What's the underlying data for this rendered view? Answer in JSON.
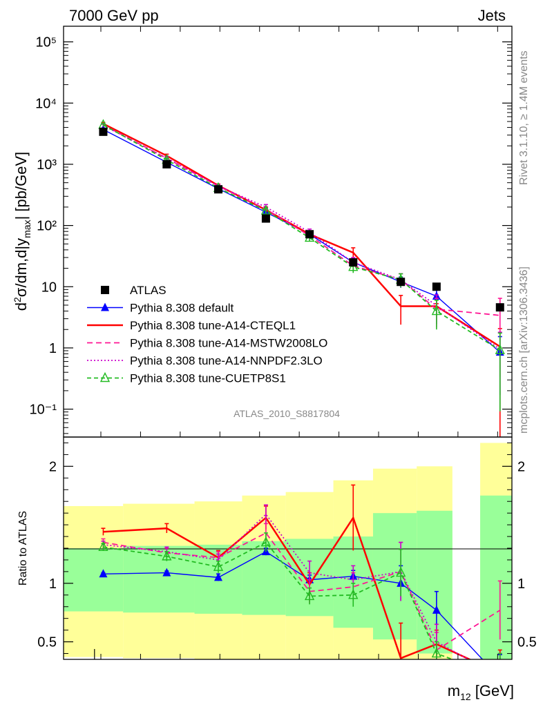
{
  "header": {
    "left": "7000 GeV pp",
    "right": "Jets"
  },
  "side_labels": {
    "rivet": "Rivet 3.1.10, ≥ 1.4M events",
    "mcplots": "mcplots.cern.ch [arXiv:1306.3436]"
  },
  "analysis_id": "ATLAS_2010_S8817804",
  "chart_data": [
    {
      "type": "line",
      "panel": "main",
      "ylabel": "d²σ/dm,d|y_max| [pb/GeV]",
      "yscale": "log",
      "ylim": [
        0.035,
        180000
      ],
      "xlim": [
        0,
        11.3
      ],
      "y_tick_labels": [
        "10⁻¹",
        "1",
        "10",
        "10²",
        "10³",
        "10⁴",
        "10⁵"
      ],
      "x": [
        1,
        2.6,
        3.9,
        5.1,
        6.2,
        7.3,
        8.5,
        9.4,
        11.0
      ],
      "legend": {
        "placement": "middle-left"
      },
      "series": [
        {
          "name": "ATLAS",
          "color": "#000000",
          "marker": "square",
          "values": [
            3400,
            1000,
            390,
            130,
            72,
            25,
            12,
            10,
            4.6
          ]
        },
        {
          "name": "Pythia 8.308 default",
          "color": "#0000ff",
          "marker": "filled-triangle",
          "values": [
            3700,
            1080,
            400,
            165,
            72,
            25,
            12,
            7,
            0.85
          ],
          "errors": [
            0.04,
            0.05,
            0.05,
            0.07,
            0.1,
            0.15,
            0.2,
            0.3,
            0.8
          ]
        },
        {
          "name": "Pythia 8.308 tune-A14-CTEQL1",
          "color": "#ff0000",
          "marker": "none",
          "values": [
            4600,
            1380,
            450,
            180,
            72,
            36,
            4.8,
            4.8,
            1.05
          ],
          "errors": [
            0.05,
            0.06,
            0.06,
            0.1,
            0.12,
            0.2,
            0.5,
            0.1,
            0.97
          ]
        },
        {
          "name": "Pythia 8.308 tune-A14-MSTW2008LO",
          "color": "#ff1493",
          "marker": "none",
          "values": [
            4400,
            1250,
            440,
            185,
            68,
            22,
            13,
            4.3,
            3.4
          ],
          "errors": [
            0.05,
            0.06,
            0.06,
            0.1,
            0.12,
            0.2,
            0.25,
            0.5,
            0.9
          ]
        },
        {
          "name": "Pythia 8.308 tune-A14-NNPDF2.3LO",
          "color": "#cc00cc",
          "marker": "none",
          "values": [
            4300,
            1260,
            440,
            200,
            78,
            25,
            13,
            4.9,
            0.95
          ],
          "errors": [
            0.05,
            0.06,
            0.06,
            0.1,
            0.12,
            0.2,
            0.25,
            0.5,
            0.9
          ]
        },
        {
          "name": "Pythia 8.308 tune-CUETP8S1",
          "color": "#22bb22",
          "marker": "open-triangle",
          "values": [
            4400,
            1180,
            410,
            175,
            63,
            21,
            13,
            4.0,
            0.92
          ],
          "errors": [
            0.05,
            0.06,
            0.06,
            0.1,
            0.12,
            0.2,
            0.25,
            0.5,
            0.9
          ]
        }
      ]
    },
    {
      "type": "line",
      "panel": "ratio",
      "ylabel": "Ratio to ATLAS",
      "xlabel": "m₁₂ [GeV]",
      "ylim": [
        0.35,
        2.25
      ],
      "xlim": [
        0,
        11.3
      ],
      "y_tick_labels": [
        "0.5",
        "1",
        "2"
      ],
      "bands": {
        "edges": [
          0,
          1.5,
          3.3,
          4.5,
          5.6,
          6.8,
          7.8,
          8.9,
          9.8,
          10.5,
          11.3
        ],
        "present": [
          true,
          true,
          true,
          true,
          true,
          true,
          true,
          true,
          false,
          true
        ],
        "green_low": [
          0.76,
          0.75,
          0.74,
          0.73,
          0.72,
          0.62,
          0.52,
          0.4,
          0,
          0.35
        ],
        "green_high": [
          1.3,
          1.32,
          1.33,
          1.36,
          1.38,
          1.4,
          1.6,
          1.62,
          0,
          1.75
        ],
        "yellow_low": [
          0.37,
          0.36,
          0.35,
          0.35,
          0.35,
          0.35,
          0.35,
          0.35,
          0,
          0.35
        ],
        "yellow_high": [
          1.66,
          1.68,
          1.7,
          1.75,
          1.78,
          1.88,
          1.98,
          2.0,
          0,
          2.2
        ]
      },
      "x": [
        1,
        2.6,
        3.9,
        5.1,
        6.2,
        7.3,
        8.5,
        9.4,
        11.0
      ],
      "series": [
        {
          "name": "Pythia 8.308 default",
          "color": "#0000ff",
          "marker": "filled-triangle",
          "values": [
            1.08,
            1.09,
            1.05,
            1.27,
            1.03,
            1.06,
            1.0,
            0.77,
            0.19
          ],
          "errors": [
            0.01,
            0.015,
            0.03,
            0.03,
            0.04,
            0.05,
            0.15,
            0.16,
            0.2
          ]
        },
        {
          "name": "Pythia 8.308 tune-A14-CTEQL1",
          "color": "#ff0000",
          "marker": "none",
          "values": [
            1.44,
            1.47,
            1.22,
            1.56,
            0.99,
            1.56,
            0.36,
            0.48,
            0.23
          ],
          "errors": [
            0.03,
            0.04,
            0.06,
            0.1,
            0.1,
            0.28,
            0.3,
            0.12,
            0.2
          ]
        },
        {
          "name": "Pythia 8.308 tune-A14-MSTW2008LO",
          "color": "#ff1493",
          "marker": "none",
          "values": [
            1.35,
            1.26,
            1.22,
            1.43,
            0.93,
            0.97,
            1.1,
            0.43,
            0.77
          ],
          "errors": [
            0.03,
            0.04,
            0.05,
            0.08,
            0.1,
            0.12,
            0.25,
            0.15,
            0.25
          ]
        },
        {
          "name": "Pythia 8.308 tune-A14-NNPDF2.3LO",
          "color": "#cc00cc",
          "marker": "none",
          "values": [
            1.33,
            1.27,
            1.2,
            1.59,
            1.09,
            1.03,
            1.1,
            0.5,
            0.2
          ],
          "errors": [
            0.03,
            0.04,
            0.05,
            0.08,
            0.1,
            0.12,
            0.25,
            0.15,
            0.2
          ]
        },
        {
          "name": "Pythia 8.308 tune-CUETP8S1",
          "color": "#22bb22",
          "marker": "open-triangle",
          "values": [
            1.31,
            1.23,
            1.14,
            1.35,
            0.89,
            0.9,
            1.09,
            0.4,
            0.2
          ],
          "errors": [
            0.03,
            0.04,
            0.05,
            0.08,
            0.07,
            0.1,
            0.2,
            0.1,
            0.2
          ]
        }
      ]
    }
  ]
}
